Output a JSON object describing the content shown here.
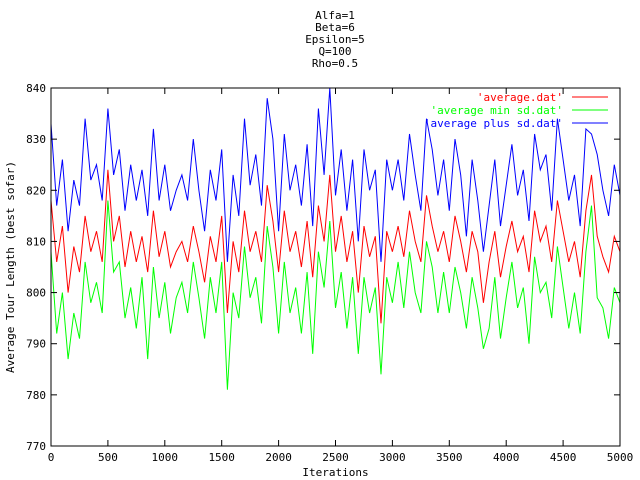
{
  "chart_data": {
    "type": "line",
    "title_lines": [
      "Alfa=1",
      "Beta=6",
      "Epsilon=5",
      "Q=100",
      "Rho=0.5"
    ],
    "xlabel": "Iterations",
    "ylabel": "Average Tour Length (best sofar)",
    "xlim": [
      0,
      5000
    ],
    "ylim": [
      770,
      840
    ],
    "xticks": [
      0,
      500,
      1000,
      1500,
      2000,
      2500,
      3000,
      3500,
      4000,
      4500,
      5000
    ],
    "yticks": [
      770,
      780,
      790,
      800,
      810,
      820,
      830,
      840
    ],
    "grid": false,
    "legend_position": "top-right",
    "series": [
      {
        "name": "'average.dat'",
        "color": "#ff0000",
        "x": [
          0,
          50,
          100,
          150,
          200,
          250,
          300,
          350,
          400,
          450,
          500,
          550,
          600,
          650,
          700,
          750,
          800,
          850,
          900,
          950,
          1000,
          1050,
          1100,
          1150,
          1200,
          1250,
          1300,
          1350,
          1400,
          1450,
          1500,
          1550,
          1600,
          1650,
          1700,
          1750,
          1800,
          1850,
          1900,
          1950,
          2000,
          2050,
          2100,
          2150,
          2200,
          2250,
          2300,
          2350,
          2400,
          2450,
          2500,
          2550,
          2600,
          2650,
          2700,
          2750,
          2800,
          2850,
          2900,
          2950,
          3000,
          3050,
          3100,
          3150,
          3200,
          3250,
          3300,
          3350,
          3400,
          3450,
          3500,
          3550,
          3600,
          3650,
          3700,
          3750,
          3800,
          3850,
          3900,
          3950,
          4000,
          4050,
          4100,
          4150,
          4200,
          4250,
          4300,
          4350,
          4400,
          4450,
          4500,
          4550,
          4600,
          4650,
          4700,
          4750,
          4800,
          4850,
          4900,
          4950,
          5000
        ],
        "y": [
          818,
          806,
          813,
          800,
          809,
          804,
          815,
          808,
          812,
          806,
          824,
          810,
          815,
          805,
          812,
          806,
          811,
          804,
          816,
          807,
          812,
          805,
          808,
          810,
          806,
          813,
          808,
          802,
          811,
          806,
          815,
          796,
          810,
          804,
          816,
          808,
          812,
          806,
          821,
          814,
          804,
          816,
          808,
          812,
          805,
          814,
          803,
          817,
          810,
          823,
          808,
          815,
          806,
          812,
          800,
          813,
          807,
          811,
          794,
          812,
          808,
          813,
          807,
          816,
          810,
          806,
          819,
          813,
          808,
          812,
          806,
          815,
          810,
          804,
          812,
          808,
          798,
          806,
          812,
          803,
          809,
          814,
          808,
          811,
          804,
          816,
          810,
          813,
          806,
          818,
          812,
          806,
          810,
          803,
          816,
          823,
          811,
          807,
          804,
          811,
          808
        ]
      },
      {
        "name": "'average min sd.dat'",
        "color": "#00ff00",
        "x": [
          0,
          50,
          100,
          150,
          200,
          250,
          300,
          350,
          400,
          450,
          500,
          550,
          600,
          650,
          700,
          750,
          800,
          850,
          900,
          950,
          1000,
          1050,
          1100,
          1150,
          1200,
          1250,
          1300,
          1350,
          1400,
          1450,
          1500,
          1550,
          1600,
          1650,
          1700,
          1750,
          1800,
          1850,
          1900,
          1950,
          2000,
          2050,
          2100,
          2150,
          2200,
          2250,
          2300,
          2350,
          2400,
          2450,
          2500,
          2550,
          2600,
          2650,
          2700,
          2750,
          2800,
          2850,
          2900,
          2950,
          3000,
          3050,
          3100,
          3150,
          3200,
          3250,
          3300,
          3350,
          3400,
          3450,
          3500,
          3550,
          3600,
          3650,
          3700,
          3750,
          3800,
          3850,
          3900,
          3950,
          4000,
          4050,
          4100,
          4150,
          4200,
          4250,
          4300,
          4350,
          4400,
          4450,
          4500,
          4550,
          4600,
          4650,
          4700,
          4750,
          4800,
          4850,
          4900,
          4950,
          5000
        ],
        "y": [
          808,
          792,
          800,
          787,
          796,
          791,
          806,
          798,
          802,
          796,
          818,
          804,
          806,
          795,
          801,
          793,
          803,
          787,
          805,
          795,
          802,
          792,
          799,
          802,
          796,
          806,
          799,
          791,
          803,
          796,
          806,
          781,
          800,
          795,
          809,
          799,
          803,
          794,
          813,
          805,
          792,
          806,
          796,
          801,
          792,
          804,
          788,
          808,
          801,
          814,
          797,
          804,
          793,
          803,
          788,
          803,
          796,
          801,
          784,
          803,
          798,
          806,
          797,
          808,
          800,
          796,
          810,
          805,
          796,
          804,
          796,
          805,
          800,
          793,
          803,
          797,
          789,
          793,
          803,
          791,
          799,
          806,
          797,
          801,
          790,
          807,
          800,
          802,
          795,
          809,
          801,
          793,
          800,
          792,
          808,
          817,
          799,
          797,
          791,
          801,
          798
        ]
      },
      {
        "name": "'average plus sd.dat'",
        "color": "#0000ff",
        "x": [
          0,
          50,
          100,
          150,
          200,
          250,
          300,
          350,
          400,
          450,
          500,
          550,
          600,
          650,
          700,
          750,
          800,
          850,
          900,
          950,
          1000,
          1050,
          1100,
          1150,
          1200,
          1250,
          1300,
          1350,
          1400,
          1450,
          1500,
          1550,
          1600,
          1650,
          1700,
          1750,
          1800,
          1850,
          1900,
          1950,
          2000,
          2050,
          2100,
          2150,
          2200,
          2250,
          2300,
          2350,
          2400,
          2450,
          2500,
          2550,
          2600,
          2650,
          2700,
          2750,
          2800,
          2850,
          2900,
          2950,
          3000,
          3050,
          3100,
          3150,
          3200,
          3250,
          3300,
          3350,
          3400,
          3450,
          3500,
          3550,
          3600,
          3650,
          3700,
          3750,
          3800,
          3850,
          3900,
          3950,
          4000,
          4050,
          4100,
          4150,
          4200,
          4250,
          4300,
          4350,
          4400,
          4450,
          4500,
          4550,
          4600,
          4650,
          4700,
          4750,
          4800,
          4850,
          4900,
          4950,
          5000
        ],
        "y": [
          833,
          817,
          826,
          812,
          822,
          817,
          834,
          822,
          825,
          818,
          836,
          823,
          828,
          816,
          825,
          818,
          824,
          815,
          832,
          818,
          825,
          816,
          820,
          823,
          818,
          830,
          820,
          812,
          824,
          818,
          828,
          806,
          823,
          815,
          834,
          821,
          827,
          817,
          838,
          830,
          812,
          831,
          820,
          825,
          817,
          829,
          813,
          836,
          823,
          840,
          819,
          828,
          816,
          826,
          810,
          828,
          820,
          824,
          806,
          826,
          820,
          826,
          818,
          831,
          823,
          816,
          834,
          828,
          819,
          826,
          816,
          830,
          823,
          811,
          826,
          818,
          808,
          817,
          826,
          813,
          821,
          829,
          819,
          824,
          814,
          831,
          824,
          827,
          816,
          834,
          826,
          818,
          823,
          813,
          832,
          831,
          827,
          820,
          815,
          825,
          819
        ]
      }
    ]
  }
}
